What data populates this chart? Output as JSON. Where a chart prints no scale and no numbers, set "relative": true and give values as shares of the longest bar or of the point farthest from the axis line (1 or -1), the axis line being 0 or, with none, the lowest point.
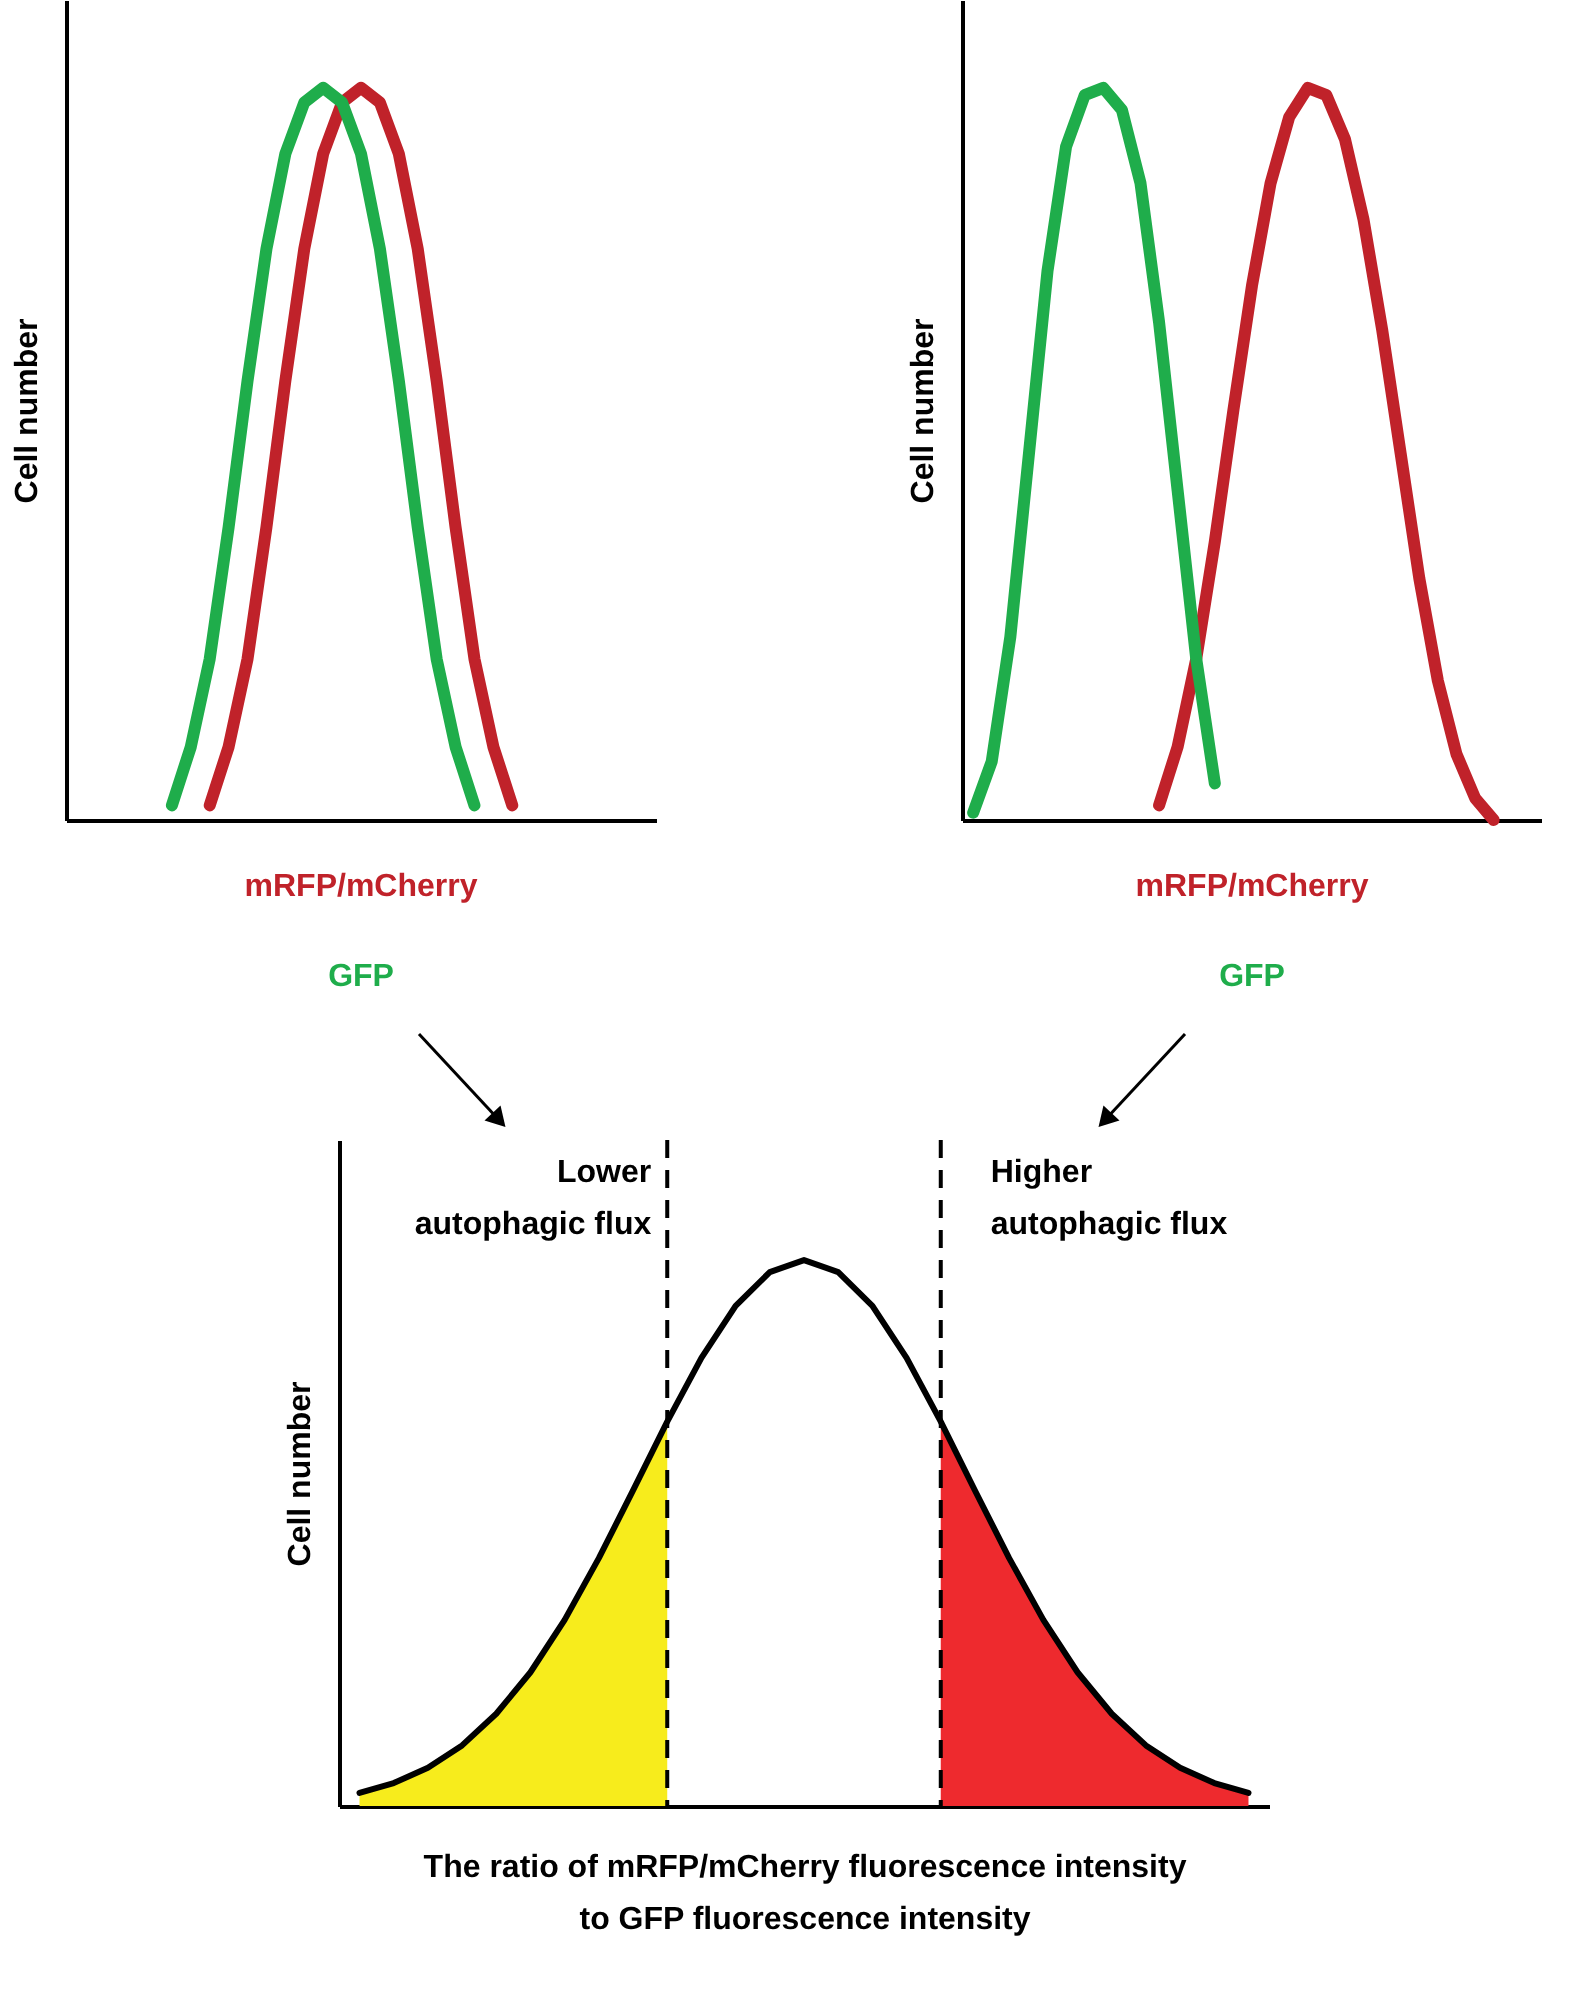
{
  "chart_data": [
    {
      "type": "line",
      "relative": true,
      "ylabel": "Cell number",
      "legend": "bottom",
      "tick_labels": false,
      "grid": false,
      "categories": [
        null,
        null,
        null,
        null,
        null,
        null,
        null,
        null,
        null,
        null,
        null,
        null,
        null,
        null,
        null,
        null,
        null,
        null,
        null,
        null,
        null,
        null,
        null,
        null,
        null,
        null,
        null,
        null,
        null,
        null,
        null
      ],
      "series": [
        {
          "name": "mRFP/mCherry",
          "color": "#c0222a",
          "values": [
            null,
            null,
            null,
            null,
            null,
            null,
            null,
            0.02,
            0.1,
            0.22,
            0.4,
            0.6,
            0.78,
            0.91,
            0.98,
            1,
            0.98,
            0.91,
            0.78,
            0.6,
            0.4,
            0.22,
            0.1,
            0.02,
            null,
            null,
            null,
            null,
            null,
            null,
            null
          ]
        },
        {
          "name": "GFP",
          "color": "#1fad4b",
          "values": [
            null,
            null,
            null,
            null,
            null,
            0.02,
            0.1,
            0.22,
            0.4,
            0.6,
            0.78,
            0.91,
            0.98,
            1,
            0.98,
            0.91,
            0.78,
            0.6,
            0.4,
            0.22,
            0.1,
            0.02,
            null,
            null,
            null,
            null,
            null,
            null,
            null,
            null,
            null
          ]
        }
      ]
    },
    {
      "type": "line",
      "relative": true,
      "ylabel": "Cell number",
      "legend": "bottom",
      "tick_labels": false,
      "grid": false,
      "categories": [
        null,
        null,
        null,
        null,
        null,
        null,
        null,
        null,
        null,
        null,
        null,
        null,
        null,
        null,
        null,
        null,
        null,
        null,
        null,
        null,
        null,
        null,
        null,
        null,
        null,
        null,
        null,
        null,
        null,
        null,
        null
      ],
      "series": [
        {
          "name": "mRFP/mCherry",
          "color": "#c0222a",
          "values": [
            null,
            null,
            null,
            null,
            null,
            null,
            null,
            null,
            null,
            null,
            0.02,
            0.1,
            0.22,
            0.38,
            0.56,
            0.73,
            0.87,
            0.96,
            1,
            0.99,
            0.93,
            0.82,
            0.67,
            0.5,
            0.33,
            0.19,
            0.09,
            0.03,
            0.0,
            null,
            null
          ]
        },
        {
          "name": "GFP",
          "color": "#1fad4b",
          "values": [
            0.01,
            0.08,
            0.25,
            0.5,
            0.75,
            0.92,
            0.99,
            1,
            0.97,
            0.87,
            0.68,
            0.45,
            0.22,
            0.05,
            null,
            null,
            null,
            null,
            null,
            null,
            null,
            null,
            null,
            null,
            null,
            null,
            null,
            null,
            null,
            null,
            null
          ]
        }
      ]
    },
    {
      "type": "line",
      "relative": true,
      "ylabel": "Cell number",
      "xlabel": "The ratio of mRFP/mCherry fluorescence intensity\nto GFP fluorescence intensity",
      "tick_labels": false,
      "grid": false,
      "categories": [
        null,
        null,
        null,
        null,
        null,
        null,
        null,
        null,
        null,
        null,
        null,
        null,
        null,
        null,
        null,
        null,
        null,
        null,
        null,
        null,
        null,
        null,
        null,
        null,
        null,
        null,
        null
      ],
      "series": [
        {
          "type": "area",
          "color": "#f7ec1c",
          "values": [
            0.024,
            0.042,
            0.07,
            0.111,
            0.169,
            0.245,
            0.341,
            0.454,
            0.578,
            0.704,
            null,
            null,
            null,
            null,
            null,
            null,
            null,
            null,
            null,
            null,
            null,
            null,
            null,
            null,
            null,
            null,
            null
          ]
        },
        {
          "type": "area",
          "color": "#ee2a2e",
          "values": [
            null,
            null,
            null,
            null,
            null,
            null,
            null,
            null,
            null,
            null,
            null,
            null,
            null,
            null,
            null,
            null,
            null,
            0.704,
            0.578,
            0.454,
            0.341,
            0.245,
            0.169,
            0.111,
            0.07,
            0.042,
            0.024
          ]
        },
        {
          "color": "#000000",
          "values": [
            0.024,
            0.042,
            0.07,
            0.111,
            0.169,
            0.245,
            0.341,
            0.454,
            0.578,
            0.704,
            0.821,
            0.916,
            0.978,
            1,
            0.978,
            0.916,
            0.821,
            0.704,
            0.578,
            0.454,
            0.341,
            0.245,
            0.169,
            0.111,
            0.07,
            0.042,
            0.024
          ]
        }
      ],
      "annotations": [
        "Lower\nautophagic flux",
        "Higher\nautophagic flux"
      ]
    }
  ]
}
